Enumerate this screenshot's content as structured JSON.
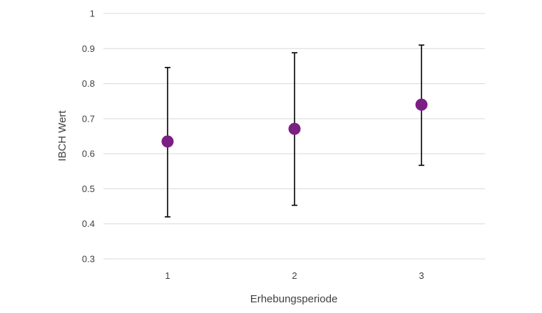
{
  "chart_data": {
    "type": "scatter",
    "xlabel": "Erhebungsperiode",
    "ylabel": "IBCH Wert",
    "categories": [
      "1",
      "2",
      "3"
    ],
    "x": [
      1,
      2,
      3
    ],
    "series": [
      {
        "values": [
          0.635,
          0.671,
          0.74
        ],
        "error_low": [
          0.42,
          0.453,
          0.567
        ],
        "error_high": [
          0.846,
          0.888,
          0.91
        ]
      }
    ],
    "ylim": [
      0.3,
      1
    ],
    "yticks": [
      0.3,
      0.4,
      0.5,
      0.6,
      0.7,
      0.8,
      0.9,
      1
    ],
    "ytick_labels": [
      "0.3",
      "0.4",
      "0.5",
      "0.6",
      "0.7",
      "0.8",
      "0.9",
      "1"
    ],
    "grid": true,
    "legend": "none",
    "marker_color": "#7b1f84",
    "error_bar_color": "#000000",
    "grid_color": "#d9d9d9"
  }
}
